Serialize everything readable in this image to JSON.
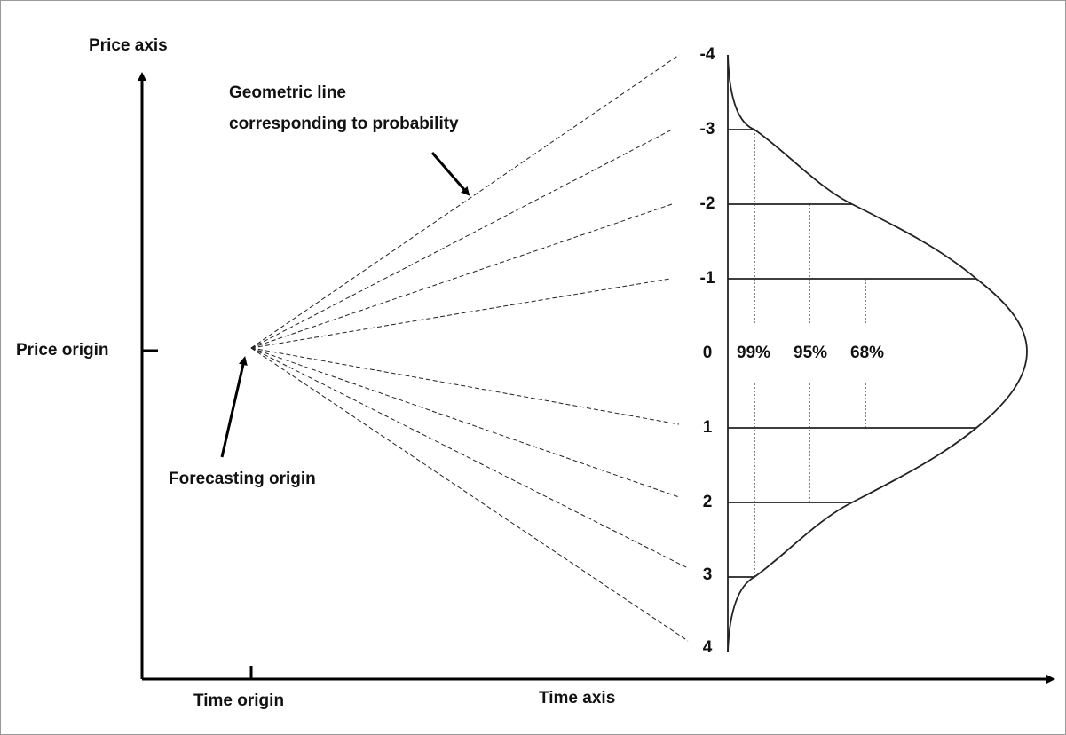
{
  "axes": {
    "y_label": "Price axis",
    "x_label": "Time axis",
    "y_origin": "Price origin",
    "x_origin": "Time origin"
  },
  "annotations": {
    "geometric_line": [
      "Geometric line",
      "corresponding to probability"
    ],
    "forecasting_origin": "Forecasting origin"
  },
  "levels": [
    "-4",
    "-3",
    "-2",
    "-1",
    "0",
    "1",
    "2",
    "3",
    "4"
  ],
  "intervals": [
    "99%",
    "95%",
    "68%"
  ]
}
